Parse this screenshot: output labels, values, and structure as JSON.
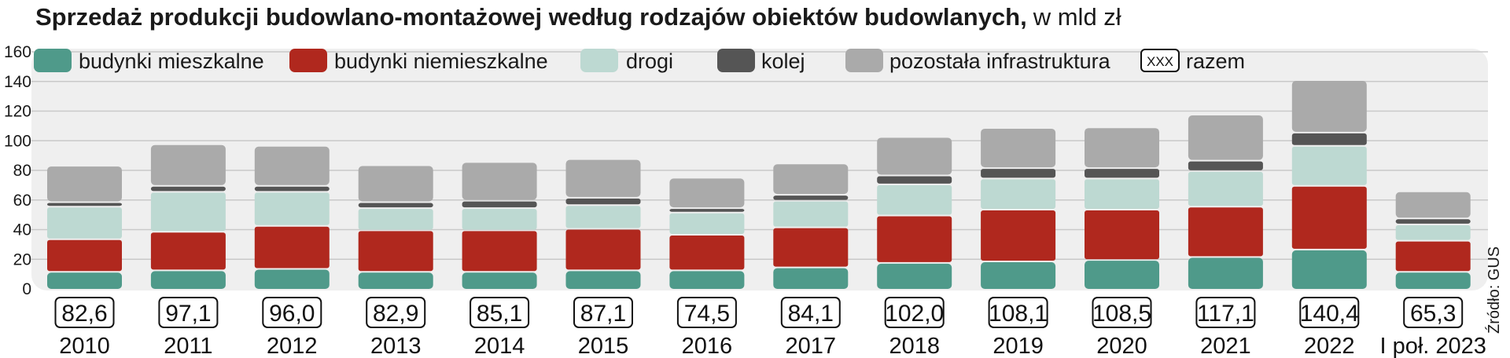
{
  "chart_data": {
    "type": "bar",
    "stacked": true,
    "title": "Sprzedaż produkcji budowlano-montażowej według rodzajów obiektów budowlanych,",
    "unit": "w mld zł",
    "source": "Źródło: GUS",
    "ylim": [
      0,
      160
    ],
    "yticks": [
      0,
      20,
      40,
      60,
      80,
      100,
      120,
      140,
      160
    ],
    "grid": true,
    "legend_position": "top",
    "categories": [
      "2010",
      "2011",
      "2012",
      "2013",
      "2014",
      "2015",
      "2016",
      "2017",
      "2018",
      "2019",
      "2020",
      "2021",
      "2022",
      "I poł. 2023"
    ],
    "series": [
      {
        "name": "budynki mieszkalne",
        "color": "#4f9a8a",
        "values": [
          11,
          12,
          13,
          11,
          11,
          12,
          12,
          14,
          17,
          18,
          19,
          21,
          26,
          11
        ]
      },
      {
        "name": "budynki niemieszkalne",
        "color": "#b0281e",
        "values": [
          22,
          26,
          29,
          28,
          28,
          28,
          24,
          27,
          32,
          35,
          34,
          34,
          43,
          21
        ]
      },
      {
        "name": "drogi",
        "color": "#bdd9d2",
        "values": [
          22,
          27,
          23,
          15,
          15,
          16,
          15,
          18,
          21,
          21,
          21,
          24,
          27,
          11
        ]
      },
      {
        "name": "kolej",
        "color": "#555555",
        "values": [
          3,
          4,
          4,
          4,
          5,
          5,
          3,
          4,
          6,
          7,
          7,
          7,
          9,
          4
        ]
      },
      {
        "name": "pozostała infrastruktura",
        "color": "#aaaaaa",
        "values": [
          24.6,
          28.1,
          27.0,
          24.9,
          26.1,
          26.1,
          20.5,
          21.1,
          26.0,
          27.1,
          27.5,
          31.1,
          35.4,
          18.3
        ]
      }
    ],
    "totals_legend_label": "razem",
    "totals_legend_sample": "XXX",
    "totals": [
      "82,6",
      "97,1",
      "96,0",
      "82,9",
      "85,1",
      "87,1",
      "74,5",
      "84,1",
      "102,0",
      "108,1",
      "108,5",
      "117,1",
      "140,4",
      "65,3"
    ]
  }
}
